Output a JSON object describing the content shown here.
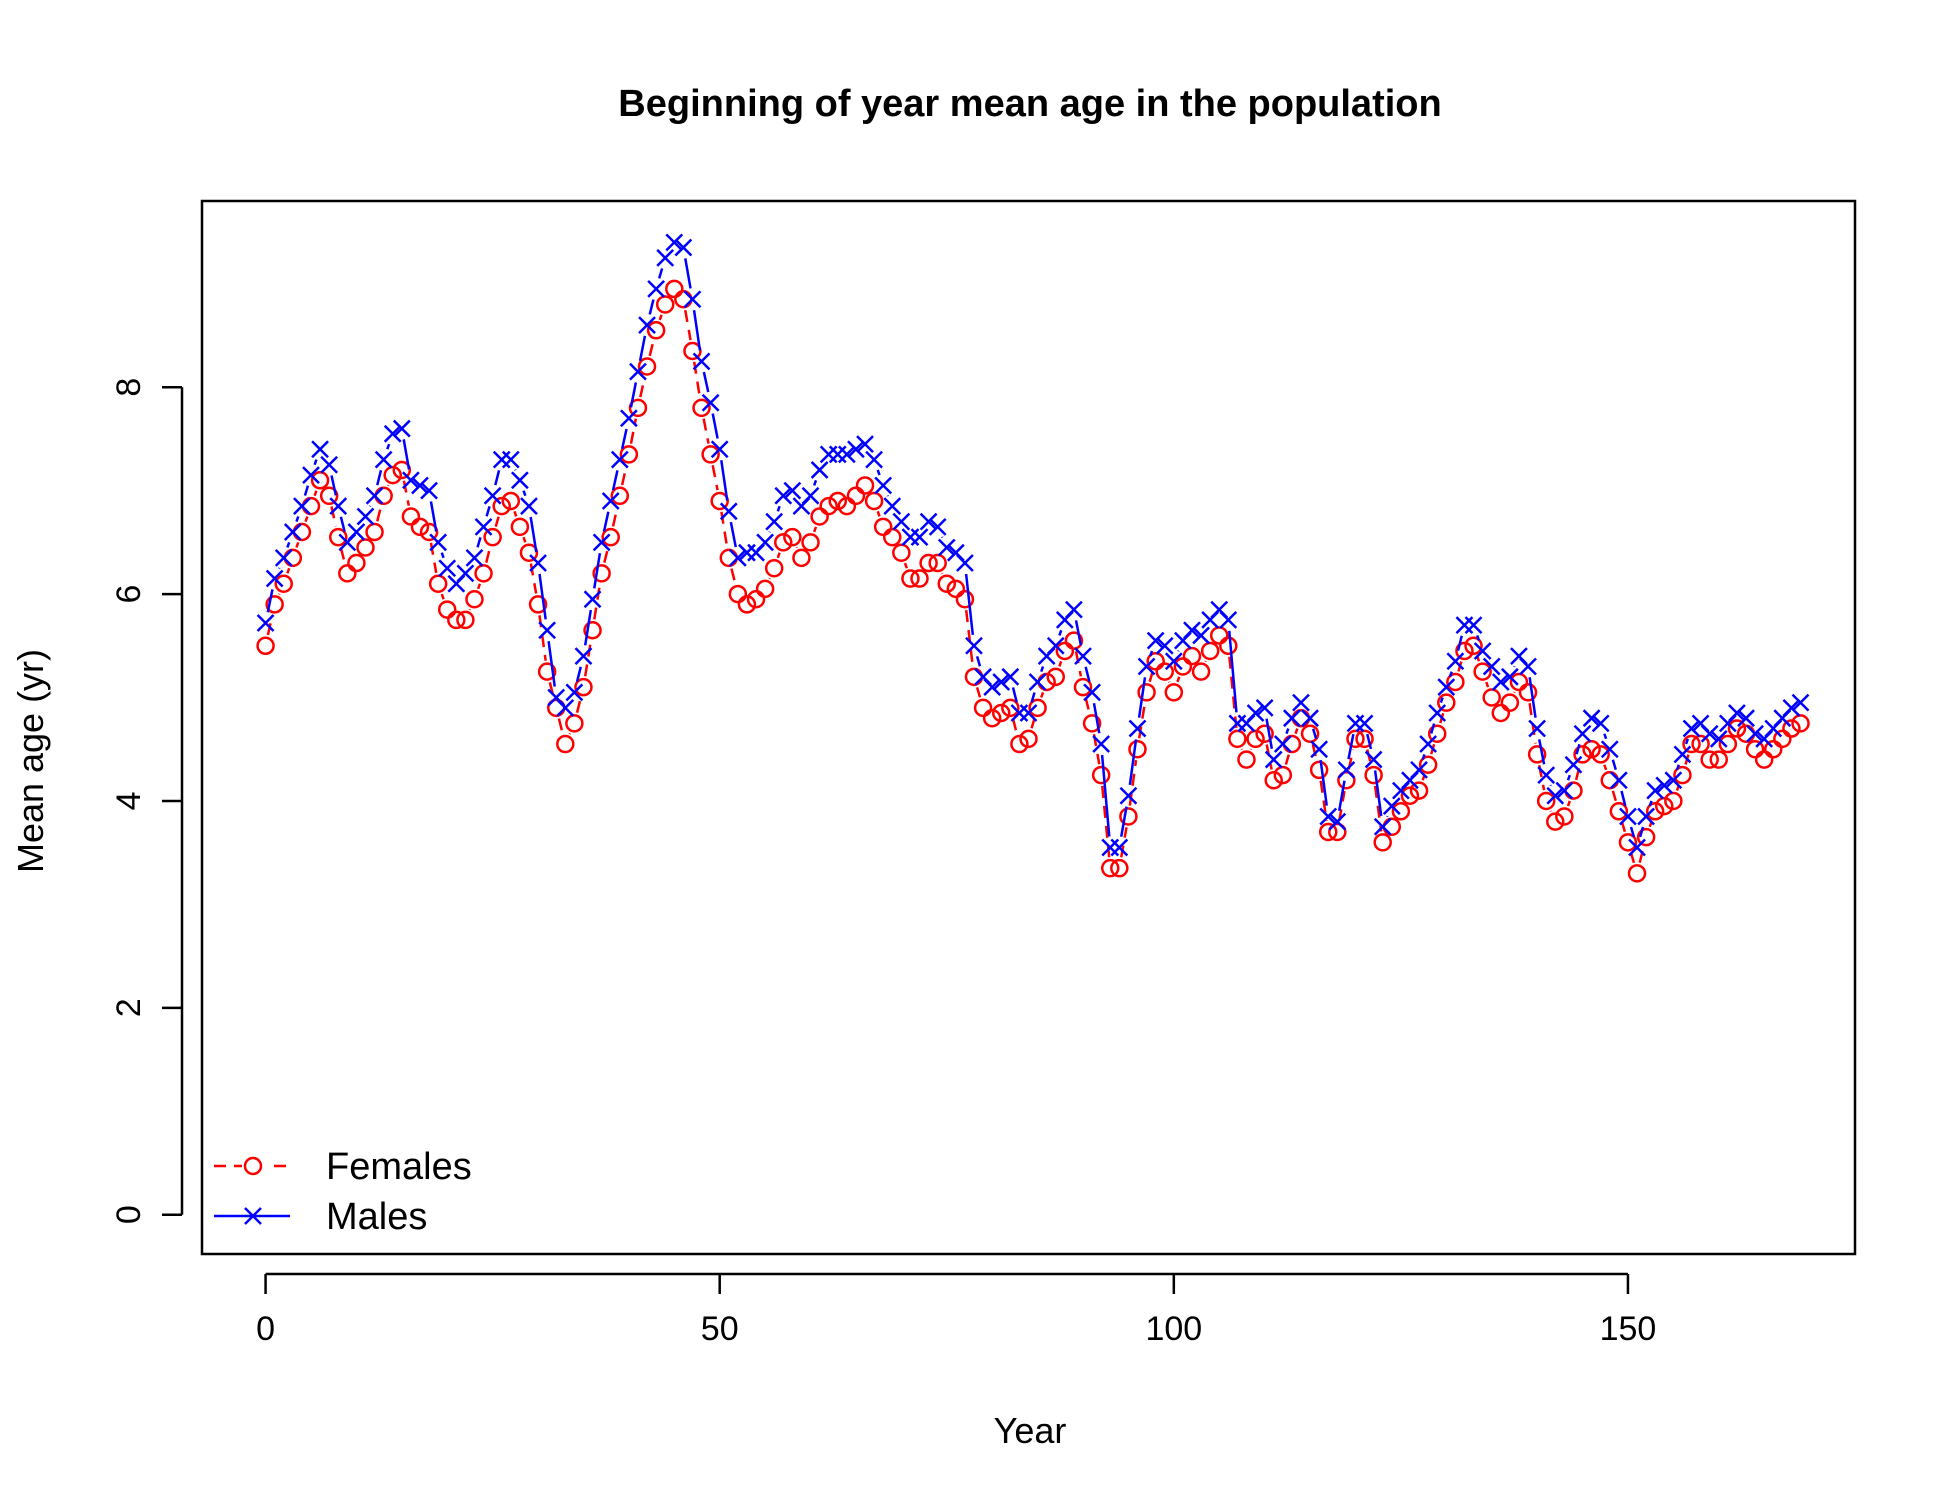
{
  "chart_data": {
    "type": "line",
    "title": "Beginning of year mean age in the population",
    "xlabel": "Year",
    "ylabel": "Mean age (yr)",
    "xlim": [
      -7,
      175
    ],
    "ylim": [
      -0.38,
      9.8
    ],
    "x_ticks": [
      0,
      50,
      100,
      150
    ],
    "y_ticks": [
      0,
      2,
      4,
      6,
      8
    ],
    "x_tick_labels": [
      "0",
      "50",
      "100",
      "150"
    ],
    "y_tick_labels": [
      "0",
      "2",
      "4",
      "6",
      "8"
    ],
    "grid": false,
    "legend_position": "bottom-left",
    "x_start": 0,
    "series": [
      {
        "name": "Females",
        "color": "#ff0000",
        "line_style": "dashed",
        "marker": "circle",
        "values": [
          5.5,
          5.9,
          6.1,
          6.35,
          6.6,
          6.85,
          7.1,
          6.95,
          6.55,
          6.2,
          6.3,
          6.45,
          6.6,
          6.95,
          7.15,
          7.2,
          6.75,
          6.65,
          6.6,
          6.1,
          5.85,
          5.75,
          5.75,
          5.95,
          6.2,
          6.55,
          6.85,
          6.9,
          6.65,
          6.4,
          5.9,
          5.25,
          4.9,
          4.55,
          4.75,
          5.1,
          5.65,
          6.2,
          6.55,
          6.95,
          7.35,
          7.8,
          8.2,
          8.55,
          8.8,
          8.95,
          8.85,
          8.35,
          7.8,
          7.35,
          6.9,
          6.35,
          6.0,
          5.9,
          5.95,
          6.05,
          6.25,
          6.5,
          6.55,
          6.35,
          6.5,
          6.75,
          6.85,
          6.9,
          6.85,
          6.95,
          7.05,
          6.9,
          6.65,
          6.55,
          6.4,
          6.15,
          6.15,
          6.3,
          6.3,
          6.1,
          6.05,
          5.95,
          5.2,
          4.9,
          4.8,
          4.85,
          4.9,
          4.55,
          4.6,
          4.9,
          5.15,
          5.2,
          5.45,
          5.55,
          5.1,
          4.75,
          4.25,
          3.35,
          3.35,
          3.85,
          4.5,
          5.05,
          5.35,
          5.25,
          5.05,
          5.3,
          5.4,
          5.25,
          5.45,
          5.6,
          5.5,
          4.6,
          4.4,
          4.6,
          4.65,
          4.2,
          4.25,
          4.55,
          4.8,
          4.65,
          4.3,
          3.7,
          3.7,
          4.2,
          4.6,
          4.6,
          4.25,
          3.6,
          3.75,
          3.9,
          4.05,
          4.1,
          4.35,
          4.65,
          4.95,
          5.15,
          5.45,
          5.5,
          5.25,
          5.0,
          4.85,
          4.95,
          5.15,
          5.05,
          4.45,
          4.0,
          3.8,
          3.85,
          4.1,
          4.45,
          4.5,
          4.45,
          4.2,
          3.9,
          3.6,
          3.3,
          3.65,
          3.9,
          3.95,
          4.0,
          4.25,
          4.55,
          4.55,
          4.4,
          4.4,
          4.55,
          4.7,
          4.65,
          4.5,
          4.4,
          4.5,
          4.6,
          4.7,
          4.75
        ]
      },
      {
        "name": "Males",
        "color": "#0000ff",
        "line_style": "solid",
        "marker": "x",
        "values": [
          5.72,
          6.15,
          6.35,
          6.6,
          6.85,
          7.15,
          7.4,
          7.25,
          6.85,
          6.5,
          6.6,
          6.75,
          6.95,
          7.3,
          7.55,
          7.6,
          7.1,
          7.05,
          7.0,
          6.5,
          6.25,
          6.1,
          6.2,
          6.35,
          6.65,
          6.95,
          7.3,
          7.3,
          7.1,
          6.85,
          6.3,
          5.65,
          5.0,
          4.9,
          5.05,
          5.4,
          5.95,
          6.5,
          6.9,
          7.3,
          7.7,
          8.15,
          8.6,
          8.95,
          9.25,
          9.4,
          9.35,
          8.85,
          8.25,
          7.85,
          7.4,
          6.8,
          6.35,
          6.4,
          6.4,
          6.5,
          6.7,
          6.95,
          7.0,
          6.85,
          6.95,
          7.2,
          7.35,
          7.35,
          7.35,
          7.4,
          7.45,
          7.3,
          7.05,
          6.85,
          6.7,
          6.55,
          6.55,
          6.7,
          6.65,
          6.45,
          6.4,
          6.3,
          5.5,
          5.2,
          5.1,
          5.15,
          5.2,
          4.85,
          4.85,
          5.15,
          5.4,
          5.5,
          5.75,
          5.85,
          5.4,
          5.05,
          4.55,
          3.55,
          3.55,
          4.05,
          4.7,
          5.3,
          5.55,
          5.5,
          5.35,
          5.55,
          5.65,
          5.6,
          5.75,
          5.85,
          5.75,
          4.75,
          4.75,
          4.85,
          4.9,
          4.4,
          4.55,
          4.8,
          4.95,
          4.8,
          4.5,
          3.85,
          3.8,
          4.3,
          4.75,
          4.75,
          4.4,
          3.75,
          3.95,
          4.1,
          4.2,
          4.3,
          4.55,
          4.85,
          5.1,
          5.35,
          5.7,
          5.7,
          5.45,
          5.3,
          5.15,
          5.2,
          5.4,
          5.3,
          4.7,
          4.25,
          4.05,
          4.1,
          4.35,
          4.65,
          4.8,
          4.75,
          4.5,
          4.2,
          3.85,
          3.55,
          3.85,
          4.1,
          4.15,
          4.2,
          4.45,
          4.7,
          4.75,
          4.65,
          4.6,
          4.75,
          4.85,
          4.8,
          4.65,
          4.6,
          4.7,
          4.8,
          4.9,
          4.95
        ]
      }
    ]
  }
}
